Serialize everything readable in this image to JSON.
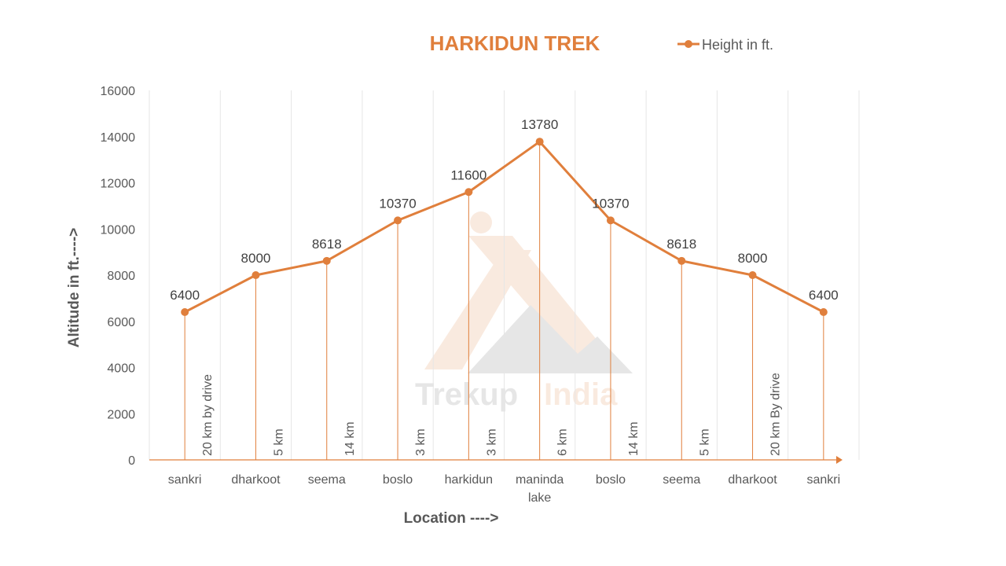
{
  "colors": {
    "series": "#E07F3C",
    "title": "#E07F3C",
    "grid": "#E6E6E6",
    "axis_text": "#595959"
  },
  "watermark": {
    "text_a": "Trekup",
    "text_b": "India"
  },
  "chart_data": {
    "type": "line",
    "title": "HARKIDUN TREK",
    "xlabel": "Location ---->",
    "ylabel": "Altitude in ft.---->",
    "ylim": [
      0,
      16000
    ],
    "yticks": [
      0,
      2000,
      4000,
      6000,
      8000,
      10000,
      12000,
      14000,
      16000
    ],
    "grid": "vertical",
    "legend": "top-right",
    "categories": [
      [
        "sankri"
      ],
      [
        "dharkoot"
      ],
      [
        "seema"
      ],
      [
        "boslo"
      ],
      [
        "harkidun"
      ],
      [
        "maninda",
        "lake"
      ],
      [
        "boslo"
      ],
      [
        "seema"
      ],
      [
        "dharkoot"
      ],
      [
        "sankri"
      ]
    ],
    "series": [
      {
        "name": "Height in ft.",
        "values": [
          6400,
          8000,
          8618,
          10370,
          11600,
          13780,
          10370,
          8618,
          8000,
          6400
        ]
      }
    ],
    "segment_labels": [
      {
        "after": 0,
        "text": "20 km  by drive"
      },
      {
        "after": 1,
        "text": "5 km"
      },
      {
        "after": 2,
        "text": "14 km"
      },
      {
        "after": 3,
        "text": "3 km"
      },
      {
        "after": 4,
        "text": "3 km"
      },
      {
        "after": 5,
        "text": "6 km"
      },
      {
        "after": 6,
        "text": "14 km"
      },
      {
        "after": 7,
        "text": "5 km"
      },
      {
        "after": 8,
        "text": "20 km By drive"
      }
    ]
  }
}
